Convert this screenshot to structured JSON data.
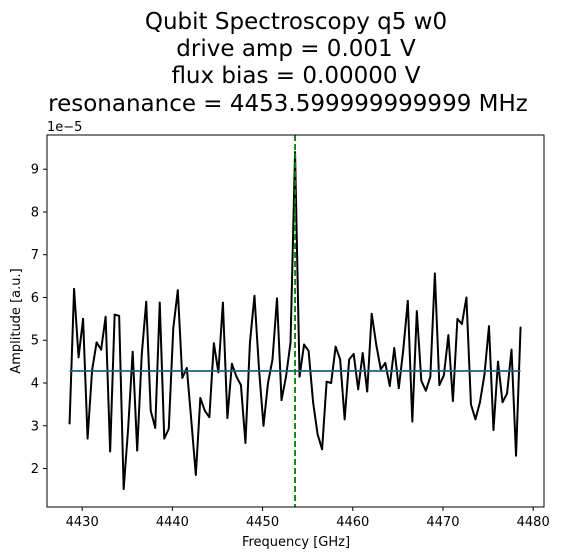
{
  "chart_data": {
    "type": "line",
    "title_lines": [
      "Qubit Spectroscopy q5 w0",
      "drive amp = 0.001 V",
      "flux bias = 0.00000 V",
      "resonanance = 4453.599999999999 MHz"
    ],
    "xlabel": "Frequency [GHz]",
    "ylabel": "Amplitude [a.u.]",
    "y_offset_label": "1e−5",
    "xlim": [
      4426.1,
      4481.2
    ],
    "ylim": [
      1.1,
      9.8
    ],
    "x_ticks": [
      4430,
      4440,
      4450,
      4460,
      4470,
      4480
    ],
    "y_ticks": [
      2,
      3,
      4,
      5,
      6,
      7,
      8,
      9
    ],
    "x_tick_labels": [
      "4430",
      "4440",
      "4450",
      "4460",
      "4470",
      "4480"
    ],
    "y_tick_labels": [
      "2",
      "3",
      "4",
      "5",
      "6",
      "7",
      "8",
      "9"
    ],
    "grid": false,
    "series": [
      {
        "color": "#000000",
        "x": [
          4428.6,
          4429.1,
          4429.6,
          4430.1,
          4430.6,
          4431.1,
          4431.6,
          4432.1,
          4432.6,
          4433.1,
          4433.6,
          4434.1,
          4434.6,
          4435.1,
          4435.6,
          4436.1,
          4436.6,
          4437.1,
          4437.6,
          4438.1,
          4438.6,
          4439.1,
          4439.6,
          4440.1,
          4440.6,
          4441.1,
          4441.6,
          4442.1,
          4442.6,
          4443.1,
          4443.6,
          4444.1,
          4444.6,
          4445.1,
          4445.6,
          4446.1,
          4446.6,
          4447.1,
          4447.6,
          4448.1,
          4448.6,
          4449.1,
          4449.6,
          4450.1,
          4450.6,
          4451.1,
          4451.6,
          4452.1,
          4452.6,
          4453.1,
          4453.6,
          4454.1,
          4454.6,
          4455.1,
          4455.6,
          4456.1,
          4456.6,
          4457.1,
          4457.6,
          4458.1,
          4458.6,
          4459.1,
          4459.6,
          4460.1,
          4460.6,
          4461.1,
          4461.6,
          4462.1,
          4462.6,
          4463.1,
          4463.6,
          4464.1,
          4464.6,
          4465.1,
          4465.6,
          4466.1,
          4466.6,
          4467.1,
          4467.6,
          4468.1,
          4468.6,
          4469.1,
          4469.6,
          4470.1,
          4470.6,
          4471.1,
          4471.6,
          4472.1,
          4472.6,
          4473.1,
          4473.6,
          4474.1,
          4474.6,
          4475.1,
          4475.6,
          4476.1,
          4476.6,
          4477.1,
          4477.6,
          4478.1,
          4478.6
        ],
        "values": [
          3.05,
          6.2,
          4.6,
          5.5,
          2.7,
          4.3,
          4.95,
          4.78,
          5.55,
          2.4,
          5.6,
          5.57,
          1.52,
          2.95,
          4.73,
          2.42,
          4.65,
          5.9,
          3.35,
          2.95,
          5.88,
          2.7,
          2.93,
          5.28,
          6.17,
          4.12,
          4.35,
          3.12,
          1.85,
          3.65,
          3.35,
          3.2,
          4.93,
          4.25,
          5.88,
          3.18,
          4.45,
          4.15,
          3.95,
          2.6,
          4.95,
          6.04,
          4.34,
          3.0,
          4.0,
          4.55,
          5.98,
          3.6,
          4.15,
          4.95,
          9.4,
          4.15,
          4.9,
          4.75,
          3.55,
          2.8,
          2.45,
          4.03,
          4.0,
          4.85,
          4.55,
          3.15,
          4.55,
          4.68,
          3.85,
          4.7,
          3.8,
          5.62,
          4.9,
          4.32,
          4.47,
          3.93,
          4.82,
          3.88,
          4.78,
          5.92,
          3.1,
          5.68,
          4.05,
          3.82,
          4.15,
          6.56,
          3.95,
          4.18,
          5.12,
          3.58,
          5.5,
          5.38,
          6.0,
          3.5,
          3.15,
          3.55,
          4.2,
          5.33,
          2.9,
          4.5,
          3.55,
          3.75,
          4.78,
          2.3,
          5.3
        ]
      },
      {
        "color": "#1f5f87",
        "x": [
          4428.6,
          4478.6
        ],
        "values": [
          4.28,
          4.28
        ]
      }
    ],
    "vline": {
      "x": 4453.6,
      "color": "#008000",
      "style": "dashed"
    }
  }
}
